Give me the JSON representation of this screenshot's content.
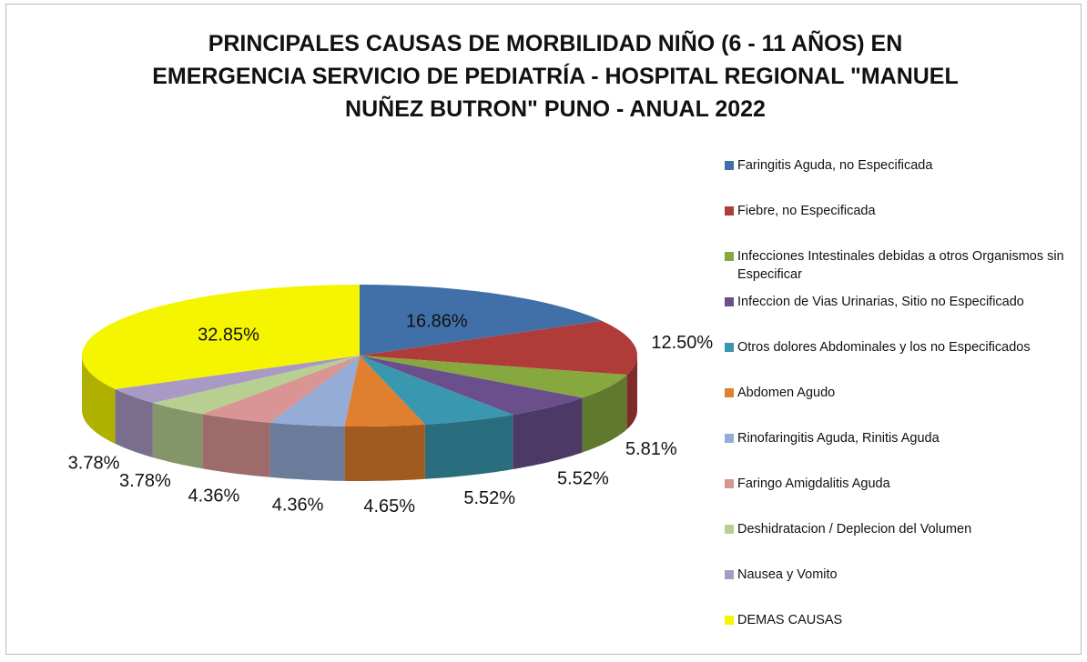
{
  "chart_data": {
    "type": "pie",
    "title": "PRINCIPALES CAUSAS DE MORBILIDAD NIÑO (6 - 11 AÑOS) EN EMERGENCIA SERVICIO DE PEDIATRÍA - HOSPITAL REGIONAL \"MANUEL NUÑEZ BUTRON\" PUNO - ANUAL 2022",
    "categories": [
      "Faringitis Aguda, no Especificada",
      "Fiebre, no Especificada",
      "Infecciones Intestinales debidas a otros Organismos sin Especificar",
      "Infeccion de Vias Urinarias, Sitio no Especificado",
      "Otros dolores Abdominales y los no Especificados",
      "Abdomen Agudo",
      "Rinofaringitis Aguda, Rinitis Aguda",
      "Faringo Amigdalitis Aguda",
      "Deshidratacion / Deplecion del Volumen",
      "Nausea y Vomito",
      "DEMAS CAUSAS"
    ],
    "values": [
      16.86,
      12.5,
      5.81,
      5.52,
      5.52,
      4.65,
      4.36,
      4.36,
      3.78,
      3.78,
      32.85
    ],
    "value_labels": [
      "16.86%",
      "12.50%",
      "5.81%",
      "5.52%",
      "5.52%",
      "4.65%",
      "4.36%",
      "4.36%",
      "3.78%",
      "3.78%",
      "32.85%"
    ],
    "colors": [
      "#4170a8",
      "#b03c3a",
      "#86a83e",
      "#6a4f8c",
      "#3a97b0",
      "#e07f2e",
      "#94acd6",
      "#d99593",
      "#b7d092",
      "#a89ac4",
      "#f5f500"
    ],
    "legend": "right"
  }
}
